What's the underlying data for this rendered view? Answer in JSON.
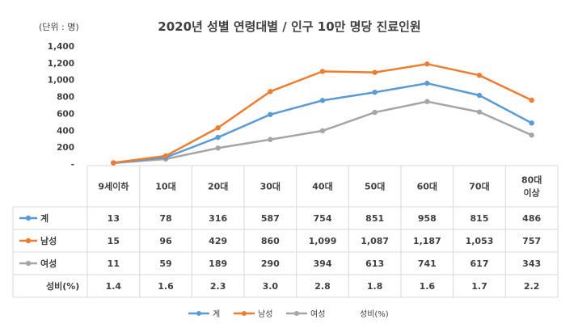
{
  "chart_data": {
    "type": "line",
    "title": "2020년 성별 연령대별 / 인구 10만 명당 진료인원",
    "unit_label": "(단위 : 명)",
    "categories": [
      [
        "9세이하"
      ],
      [
        "10대"
      ],
      [
        "20대"
      ],
      [
        "30대"
      ],
      [
        "40대"
      ],
      [
        "50대"
      ],
      [
        "60대"
      ],
      [
        "70대"
      ],
      [
        "80대",
        "이상"
      ]
    ],
    "ylim": [
      0,
      1400
    ],
    "yticks": [
      {
        "value": 0,
        "label": "-"
      },
      {
        "value": 200,
        "label": "200"
      },
      {
        "value": 400,
        "label": "400"
      },
      {
        "value": 600,
        "label": "600"
      },
      {
        "value": 800,
        "label": "800"
      },
      {
        "value": 1000,
        "label": "1,000"
      },
      {
        "value": 1200,
        "label": "1,200"
      },
      {
        "value": 1400,
        "label": "1,400"
      }
    ],
    "grid": false,
    "legend_position": "bottom",
    "series": [
      {
        "name": "계",
        "color": "#5B9BD5",
        "values": [
          13,
          78,
          316,
          587,
          754,
          851,
          958,
          815,
          486
        ],
        "labels": [
          "13",
          "78",
          "316",
          "587",
          "754",
          "851",
          "958",
          "815",
          "486"
        ]
      },
      {
        "name": "남성",
        "color": "#ED7D31",
        "values": [
          15,
          96,
          429,
          860,
          1099,
          1087,
          1187,
          1053,
          757
        ],
        "labels": [
          "15",
          "96",
          "429",
          "860",
          "1,099",
          "1,087",
          "1,187",
          "1,053",
          "757"
        ]
      },
      {
        "name": "여성",
        "color": "#A5A5A5",
        "values": [
          11,
          59,
          189,
          290,
          394,
          613,
          741,
          617,
          343
        ],
        "labels": [
          "11",
          "59",
          "189",
          "290",
          "394",
          "613",
          "741",
          "617",
          "343"
        ]
      }
    ],
    "ratio_row": {
      "name": "성비(%)",
      "values": [
        1.4,
        1.6,
        2.3,
        3.0,
        2.8,
        1.8,
        1.6,
        1.7,
        2.2
      ],
      "labels": [
        "1.4",
        "1.6",
        "2.3",
        "3.0",
        "2.8",
        "1.8",
        "1.6",
        "1.7",
        "2.2"
      ]
    }
  }
}
